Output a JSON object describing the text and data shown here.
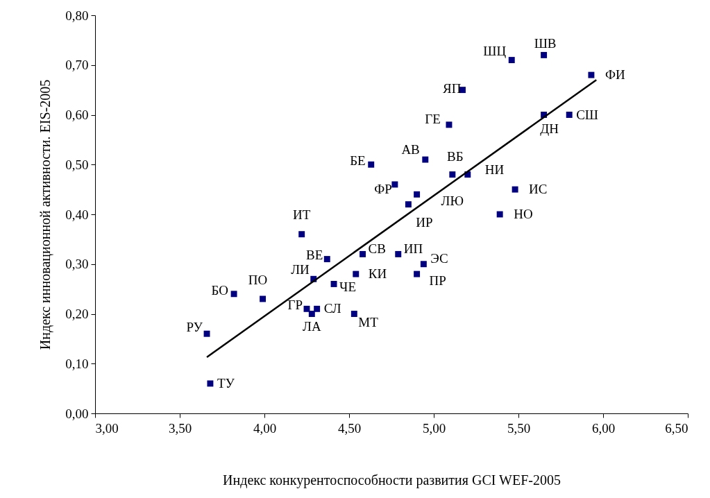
{
  "chart_data": {
    "type": "scatter",
    "xlabel": "Индекс конкурентоспособности  развития GCI WEF-2005",
    "ylabel": "Индекс инновационной активности.  EIS-2005",
    "grid": false,
    "xlim": [
      3,
      6.5
    ],
    "ylim": [
      0,
      0.8
    ],
    "xticks": [
      {
        "value": 3,
        "label": "3,00"
      },
      {
        "value": 3.5,
        "label": "3,50"
      },
      {
        "value": 4,
        "label": "4,00"
      },
      {
        "value": 4.5,
        "label": "4,50"
      },
      {
        "value": 5,
        "label": "5,00"
      },
      {
        "value": 5.5,
        "label": "5,50"
      },
      {
        "value": 6,
        "label": "6,00"
      },
      {
        "value": 6.5,
        "label": "6,50"
      }
    ],
    "yticks": [
      {
        "value": 0,
        "label": "0,00"
      },
      {
        "value": 0.1,
        "label": "0,10"
      },
      {
        "value": 0.2,
        "label": "0,20"
      },
      {
        "value": 0.3,
        "label": "0,30"
      },
      {
        "value": 0.4,
        "label": "0,40"
      },
      {
        "value": 0.5,
        "label": "0,50"
      },
      {
        "value": 0.6,
        "label": "0,60"
      },
      {
        "value": 0.7,
        "label": "0,70"
      },
      {
        "value": 0.8,
        "label": "0,80"
      }
    ],
    "series": [
      {
        "marker": "square",
        "color": "#000080",
        "x": [
          3.66,
          3.68,
          3.82,
          3.99,
          4.22,
          4.37,
          4.29,
          4.25,
          4.28,
          4.31,
          4.53,
          4.41,
          4.54,
          4.58,
          4.79,
          4.94,
          4.9,
          4.85,
          4.9,
          4.77,
          4.63,
          4.95,
          5.11,
          5.2,
          5.09,
          5.17,
          5.46,
          5.65,
          5.65,
          5.8,
          5.93,
          5.48,
          5.39
        ],
        "values": [
          0.16,
          0.06,
          0.24,
          0.23,
          0.36,
          0.31,
          0.27,
          0.21,
          0.2,
          0.21,
          0.2,
          0.26,
          0.28,
          0.32,
          0.32,
          0.3,
          0.28,
          0.42,
          0.44,
          0.46,
          0.5,
          0.51,
          0.48,
          0.48,
          0.58,
          0.65,
          0.71,
          0.72,
          0.6,
          0.6,
          0.68,
          0.45,
          0.4
        ]
      },
      {
        "type": "line",
        "marker": "none",
        "color": "#000000",
        "x": [
          3.66,
          5.96
        ],
        "values": [
          0.113,
          0.67
        ]
      }
    ],
    "annotations": [
      {
        "text": "РУ",
        "x": 3.66,
        "y": 0.16
      },
      {
        "text": "ТУ",
        "x": 3.68,
        "y": 0.06
      },
      {
        "text": "БО",
        "x": 3.82,
        "y": 0.24
      },
      {
        "text": "ПО",
        "x": 3.99,
        "y": 0.23
      },
      {
        "text": "ИТ",
        "x": 4.22,
        "y": 0.36
      },
      {
        "text": "ВЕ",
        "x": 4.37,
        "y": 0.31
      },
      {
        "text": "ЛИ",
        "x": 4.29,
        "y": 0.27
      },
      {
        "text": "ГР",
        "x": 4.25,
        "y": 0.21
      },
      {
        "text": "ЛА",
        "x": 4.28,
        "y": 0.2
      },
      {
        "text": "СЛ",
        "x": 4.31,
        "y": 0.21
      },
      {
        "text": "МТ",
        "x": 4.53,
        "y": 0.2
      },
      {
        "text": "ЧЕ",
        "x": 4.41,
        "y": 0.26
      },
      {
        "text": "КИ",
        "x": 4.54,
        "y": 0.28
      },
      {
        "text": "СВ",
        "x": 4.58,
        "y": 0.32
      },
      {
        "text": "ИП",
        "x": 4.79,
        "y": 0.32
      },
      {
        "text": "ЭС",
        "x": 4.94,
        "y": 0.3
      },
      {
        "text": "ПР",
        "x": 4.9,
        "y": 0.28
      },
      {
        "text": "ИР",
        "x": 4.85,
        "y": 0.42
      },
      {
        "text": "ЛЮ",
        "x": 4.9,
        "y": 0.44
      },
      {
        "text": "ФР",
        "x": 4.77,
        "y": 0.46
      },
      {
        "text": "БЕ",
        "x": 4.63,
        "y": 0.5
      },
      {
        "text": "АВ",
        "x": 4.95,
        "y": 0.51
      },
      {
        "text": "ВБ",
        "x": 5.11,
        "y": 0.48
      },
      {
        "text": "НИ",
        "x": 5.2,
        "y": 0.48
      },
      {
        "text": "ГЕ",
        "x": 5.09,
        "y": 0.58
      },
      {
        "text": "ЯП",
        "x": 5.17,
        "y": 0.65
      },
      {
        "text": "ШЦ",
        "x": 5.46,
        "y": 0.71
      },
      {
        "text": "ШВ",
        "x": 5.65,
        "y": 0.72
      },
      {
        "text": "ДН",
        "x": 5.65,
        "y": 0.6
      },
      {
        "text": "СШ",
        "x": 5.8,
        "y": 0.6
      },
      {
        "text": "ФИ",
        "x": 5.93,
        "y": 0.68
      },
      {
        "text": "ИС",
        "x": 5.48,
        "y": 0.45
      },
      {
        "text": "НО",
        "x": 5.39,
        "y": 0.4
      }
    ]
  }
}
